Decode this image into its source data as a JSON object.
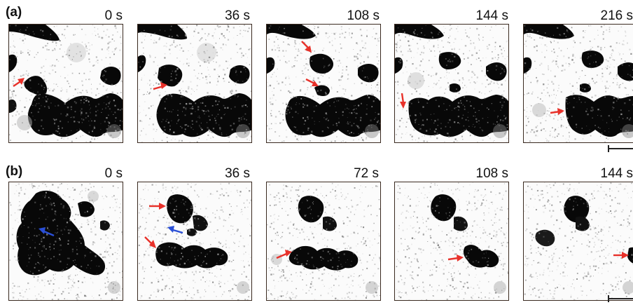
{
  "figure": {
    "rows": [
      {
        "label": "(a)",
        "times": [
          "0 s",
          "36 s",
          "108 s",
          "144 s",
          "216 s"
        ]
      },
      {
        "label": "(b)",
        "times": [
          "0 s",
          "36 s",
          "72 s",
          "108 s",
          "144 s"
        ]
      }
    ],
    "colors": {
      "arrow_red": "#e8312a",
      "arrow_blue": "#2a4fd6",
      "domain_dark": "#060606",
      "background_light": "#fbfbfb",
      "panel_border": "#3a2a20"
    }
  }
}
